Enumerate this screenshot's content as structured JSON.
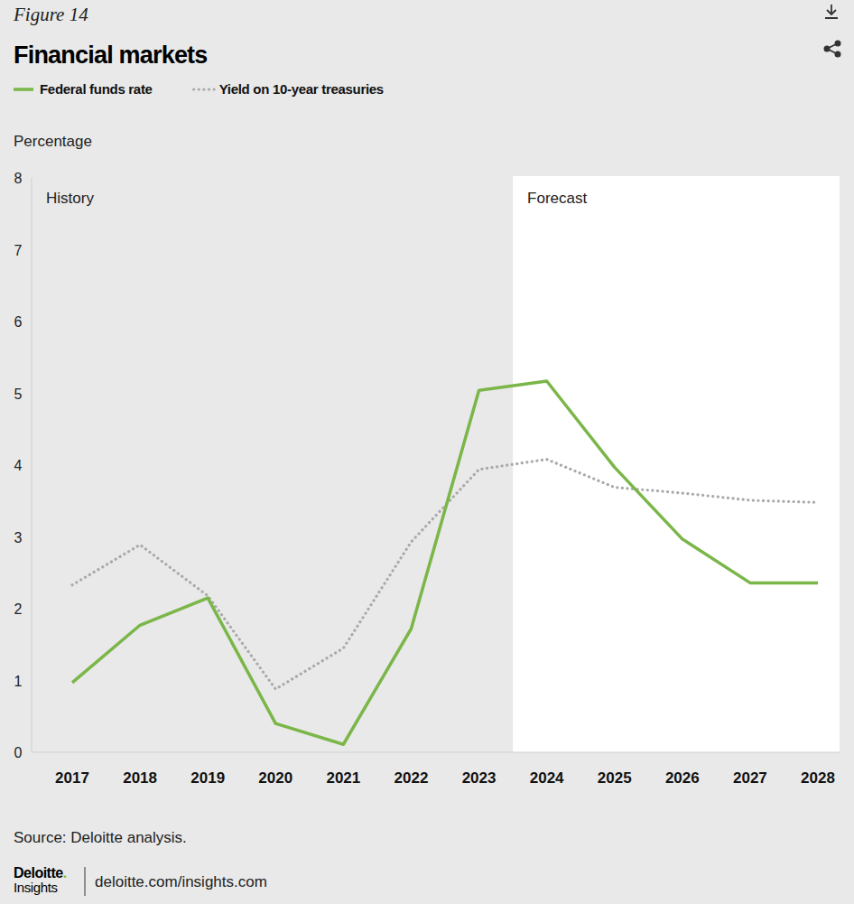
{
  "chart_data": {
    "type": "line",
    "figure_label": "Figure 14",
    "title": "Financial markets",
    "y_label": "Percentage",
    "categories": [
      "2017",
      "2018",
      "2019",
      "2020",
      "2021",
      "2022",
      "2023",
      "2024",
      "2025",
      "2026",
      "2027",
      "2028"
    ],
    "series": [
      {
        "name": "Federal funds rate",
        "color": "#7ab648",
        "line_style": "solid",
        "values": [
          0.97,
          1.77,
          2.15,
          0.4,
          0.11,
          1.72,
          5.04,
          5.17,
          3.97,
          2.97,
          2.36,
          2.36
        ]
      },
      {
        "name": "Yield on 10-year treasuries",
        "color": "#a9a9a9",
        "line_style": "dotted",
        "values": [
          2.33,
          2.89,
          2.18,
          0.88,
          1.45,
          2.93,
          3.94,
          4.08,
          3.69,
          3.61,
          3.51,
          3.48
        ]
      }
    ],
    "annotations": [
      {
        "text": "History",
        "x": "2017"
      },
      {
        "text": "Forecast",
        "x": "2024"
      }
    ],
    "ylim": [
      0,
      8
    ],
    "yticks": [
      0,
      1,
      2,
      3,
      4,
      5,
      6,
      7,
      8
    ],
    "grid": false,
    "legend": "top",
    "source": "Source: Deloitte analysis.",
    "logo_brand": "Deloitte.",
    "logo_sub": "Insights",
    "url": "deloitte.com/insights.com"
  }
}
